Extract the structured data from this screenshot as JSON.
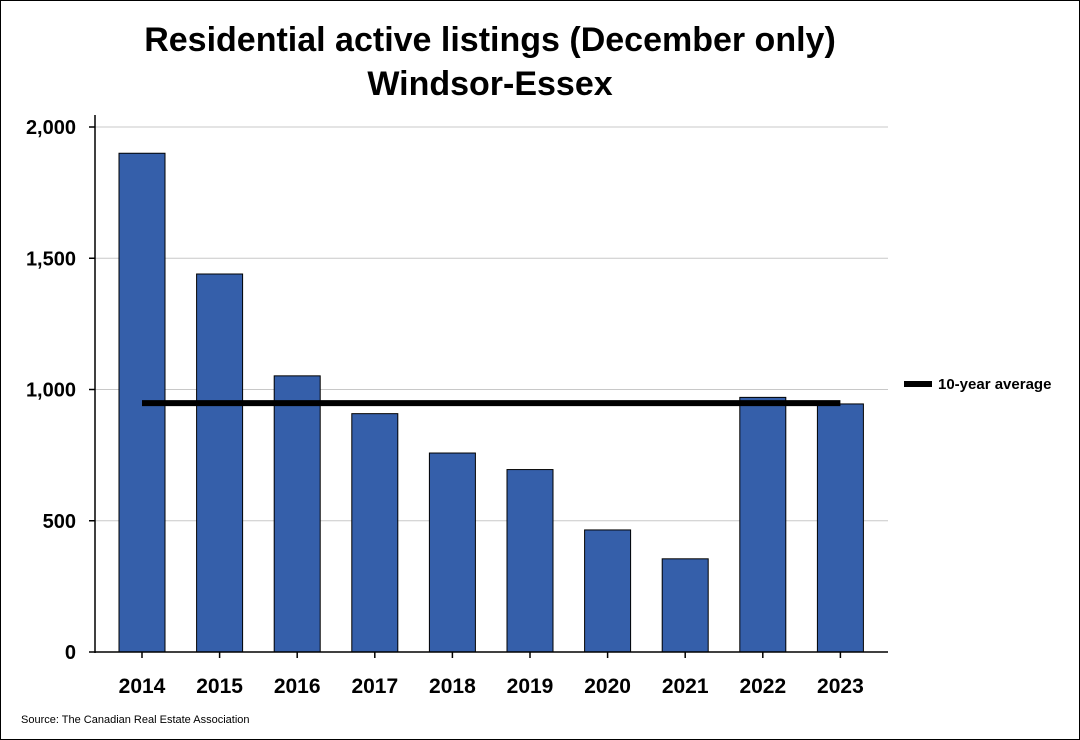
{
  "chart_data": {
    "type": "bar",
    "title": [
      "Residential active listings (December only)",
      "Windsor-Essex"
    ],
    "categories": [
      "2014",
      "2015",
      "2016",
      "2017",
      "2018",
      "2019",
      "2020",
      "2021",
      "2022",
      "2023"
    ],
    "values": [
      1900,
      1440,
      1052,
      908,
      758,
      695,
      465,
      355,
      970,
      945
    ],
    "reference_line": {
      "name": "10-year average",
      "value": 948
    },
    "ylim": [
      0,
      2000
    ],
    "yticks": [
      0,
      500,
      1000,
      1500,
      2000
    ],
    "ytick_labels": [
      "0",
      "500",
      "1,000",
      "1,500",
      "2,000"
    ],
    "grid": true,
    "legend_position": "right",
    "colors": {
      "bar": "#355FAA",
      "bar_edge": "#000000",
      "average_line": "#000000",
      "grid": "#C8C8C8"
    }
  },
  "source": "Source: The Canadian Real Estate Association"
}
